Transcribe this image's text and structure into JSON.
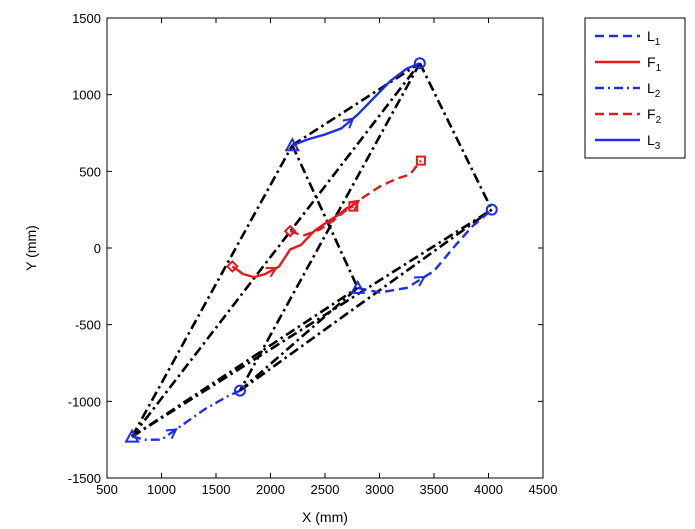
{
  "chart_data": {
    "type": "line",
    "title": "",
    "xlabel": "X (mm)",
    "ylabel": "Y (mm)",
    "xlim": [
      500,
      4500
    ],
    "ylim": [
      -1500,
      1500
    ],
    "xticks": [
      500,
      1000,
      1500,
      2000,
      2500,
      3000,
      3500,
      4000,
      4500
    ],
    "yticks": [
      -1500,
      -1000,
      -500,
      0,
      500,
      1000,
      1500
    ],
    "grid": false,
    "legend_position": "outside-top-right",
    "series": [
      {
        "name": "L",
        "sub": "1",
        "color": "#1f2ee0",
        "dash": "dashed",
        "marker": "circle",
        "points": [
          [
            2800,
            -260
          ],
          [
            3000,
            -290
          ],
          [
            3250,
            -260
          ],
          [
            3500,
            -150
          ],
          [
            3700,
            20
          ],
          [
            3850,
            140
          ],
          [
            4030,
            250
          ]
        ],
        "arrow_at": 2
      },
      {
        "name": "F",
        "sub": "1",
        "color": "#e31a1c",
        "dash": "solid",
        "marker": "diamond",
        "points": [
          [
            1650,
            -120
          ],
          [
            1750,
            -170
          ],
          [
            1850,
            -190
          ],
          [
            1950,
            -170
          ],
          [
            2080,
            -120
          ],
          [
            2180,
            -10
          ],
          [
            2280,
            20
          ],
          [
            2400,
            110
          ],
          [
            2520,
            170
          ],
          [
            2630,
            220
          ],
          [
            2700,
            260
          ],
          [
            2760,
            270
          ]
        ],
        "arrow_at": 3
      },
      {
        "name": "L",
        "sub": "2",
        "color": "#1f2ee0",
        "dash": "dashdot",
        "marker": "circle",
        "points": [
          [
            730,
            -1230
          ],
          [
            850,
            -1250
          ],
          [
            1000,
            -1250
          ],
          [
            1200,
            -1150
          ],
          [
            1400,
            -1050
          ],
          [
            1600,
            -970
          ],
          [
            1720,
            -930
          ]
        ],
        "arrow_at": 2
      },
      {
        "name": "F",
        "sub": "2",
        "color": "#e31a1c",
        "dash": "dashed",
        "marker": "square",
        "points": [
          [
            2180,
            110
          ],
          [
            2300,
            80
          ],
          [
            2450,
            120
          ],
          [
            2560,
            170
          ],
          [
            2700,
            250
          ],
          [
            2850,
            330
          ],
          [
            3000,
            400
          ],
          [
            3150,
            450
          ],
          [
            3280,
            480
          ],
          [
            3380,
            570
          ]
        ],
        "arrow_at": 4
      },
      {
        "name": "L",
        "sub": "3",
        "color": "#1f2ee0",
        "dash": "solid",
        "marker": "circle",
        "points": [
          [
            2200,
            670
          ],
          [
            2350,
            710
          ],
          [
            2500,
            740
          ],
          [
            2650,
            780
          ],
          [
            2800,
            870
          ],
          [
            2950,
            980
          ],
          [
            3100,
            1090
          ],
          [
            3250,
            1170
          ],
          [
            3370,
            1205
          ]
        ],
        "arrow_at": 3
      }
    ],
    "formation_lines": [
      [
        [
          730,
          -1230
        ],
        [
          2200,
          670
        ]
      ],
      [
        [
          730,
          -1230
        ],
        [
          3370,
          1205
        ]
      ],
      [
        [
          730,
          -1230
        ],
        [
          2800,
          -260
        ]
      ],
      [
        [
          730,
          -1230
        ],
        [
          4030,
          250
        ]
      ],
      [
        [
          2200,
          670
        ],
        [
          3370,
          1205
        ]
      ],
      [
        [
          2200,
          670
        ],
        [
          2800,
          -260
        ]
      ],
      [
        [
          3370,
          1205
        ],
        [
          4030,
          250
        ]
      ],
      [
        [
          3370,
          1205
        ],
        [
          1720,
          -930
        ]
      ],
      [
        [
          1720,
          -930
        ],
        [
          4030,
          250
        ]
      ],
      [
        [
          1720,
          -930
        ],
        [
          2800,
          -260
        ]
      ]
    ],
    "start_markers": [
      {
        "type": "triangle",
        "color": "#1f2ee0",
        "at": [
          730,
          -1230
        ]
      },
      {
        "type": "triangle",
        "color": "#1f2ee0",
        "at": [
          2200,
          670
        ]
      },
      {
        "type": "triangle",
        "color": "#1f2ee0",
        "at": [
          2800,
          -260
        ]
      },
      {
        "type": "diamond",
        "color": "#e31a1c",
        "at": [
          1650,
          -120
        ]
      },
      {
        "type": "diamond",
        "color": "#e31a1c",
        "at": [
          2180,
          110
        ]
      }
    ],
    "end_markers": [
      {
        "type": "circle",
        "color": "#1f2ee0",
        "at": [
          3370,
          1205
        ]
      },
      {
        "type": "circle",
        "color": "#1f2ee0",
        "at": [
          4030,
          250
        ]
      },
      {
        "type": "circle",
        "color": "#1f2ee0",
        "at": [
          1720,
          -930
        ]
      },
      {
        "type": "square",
        "color": "#e31a1c",
        "at": [
          2760,
          270
        ]
      },
      {
        "type": "square",
        "color": "#e31a1c",
        "at": [
          3380,
          570
        ]
      }
    ]
  }
}
